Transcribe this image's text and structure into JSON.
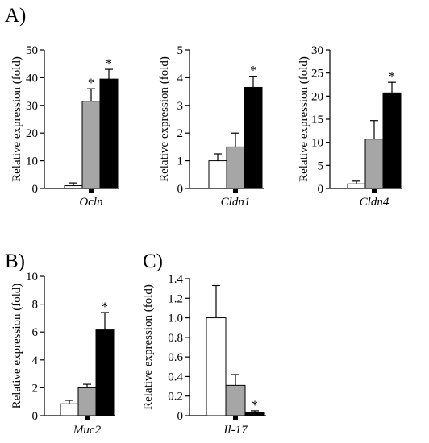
{
  "panel_labels": [
    "A)",
    "B)",
    "C)"
  ],
  "colors": {
    "group1": "#ffffff",
    "group2": "#a6a6a6",
    "group3": "#000000",
    "stroke": "#000000"
  },
  "chart_data": [
    {
      "type": "bar",
      "panel": "A)",
      "xlabel": "Ocln",
      "ylabel": "Relative expression (fold)",
      "ylim": [
        0,
        50
      ],
      "yticks": [
        0,
        10,
        20,
        30,
        40,
        50
      ],
      "ytick_labels": [
        "0",
        "10",
        "20",
        "30",
        "40",
        "50"
      ],
      "values": [
        1,
        31.5,
        39.5
      ],
      "errors": [
        1,
        4.5,
        3.5
      ],
      "significance": [
        "",
        "*",
        "*"
      ]
    },
    {
      "type": "bar",
      "panel": "",
      "xlabel": "Cldn1",
      "ylabel": "Relative expression (fold)",
      "ylim": [
        0,
        5
      ],
      "yticks": [
        0,
        1,
        2,
        3,
        4,
        5
      ],
      "ytick_labels": [
        "0",
        "1",
        "2",
        "3",
        "4",
        "5"
      ],
      "values": [
        1,
        1.5,
        3.65
      ],
      "errors": [
        0.25,
        0.5,
        0.4
      ],
      "significance": [
        "",
        "",
        "*"
      ]
    },
    {
      "type": "bar",
      "panel": "",
      "xlabel": "Cldn4",
      "ylabel": "Relative expression (fold)",
      "ylim": [
        0,
        30
      ],
      "yticks": [
        0,
        5,
        10,
        15,
        20,
        25,
        30
      ],
      "ytick_labels": [
        "0",
        "5",
        "10",
        "15",
        "20",
        "25",
        "30"
      ],
      "values": [
        1,
        10.7,
        20.7
      ],
      "errors": [
        0.6,
        4,
        2.3
      ],
      "significance": [
        "",
        "",
        "*"
      ]
    },
    {
      "type": "bar",
      "panel": "B)",
      "xlabel": "Muc2",
      "ylabel": "Relative expression (fold)",
      "ylim": [
        0,
        10
      ],
      "yticks": [
        0,
        2,
        4,
        6,
        8,
        10
      ],
      "ytick_labels": [
        "0",
        "2",
        "4",
        "6",
        "8",
        "10"
      ],
      "values": [
        0.85,
        2,
        6.15
      ],
      "errors": [
        0.25,
        0.25,
        1.25
      ],
      "significance": [
        "",
        "",
        "*"
      ]
    },
    {
      "type": "bar",
      "panel": "C)",
      "xlabel": "Il-17",
      "ylabel": "Relative expression (fold)",
      "ylim": [
        0,
        1.4
      ],
      "yticks": [
        0,
        0.2,
        0.4,
        0.6,
        0.8,
        1.0,
        1.2,
        1.4
      ],
      "ytick_labels": [
        "0",
        "0.2",
        "0.4",
        "0.6",
        "0.8",
        "1.0",
        "1.2",
        "1.4"
      ],
      "values": [
        1.0,
        0.31,
        0.03
      ],
      "errors": [
        0.33,
        0.11,
        0.02
      ],
      "significance": [
        "",
        "",
        "*"
      ]
    }
  ]
}
